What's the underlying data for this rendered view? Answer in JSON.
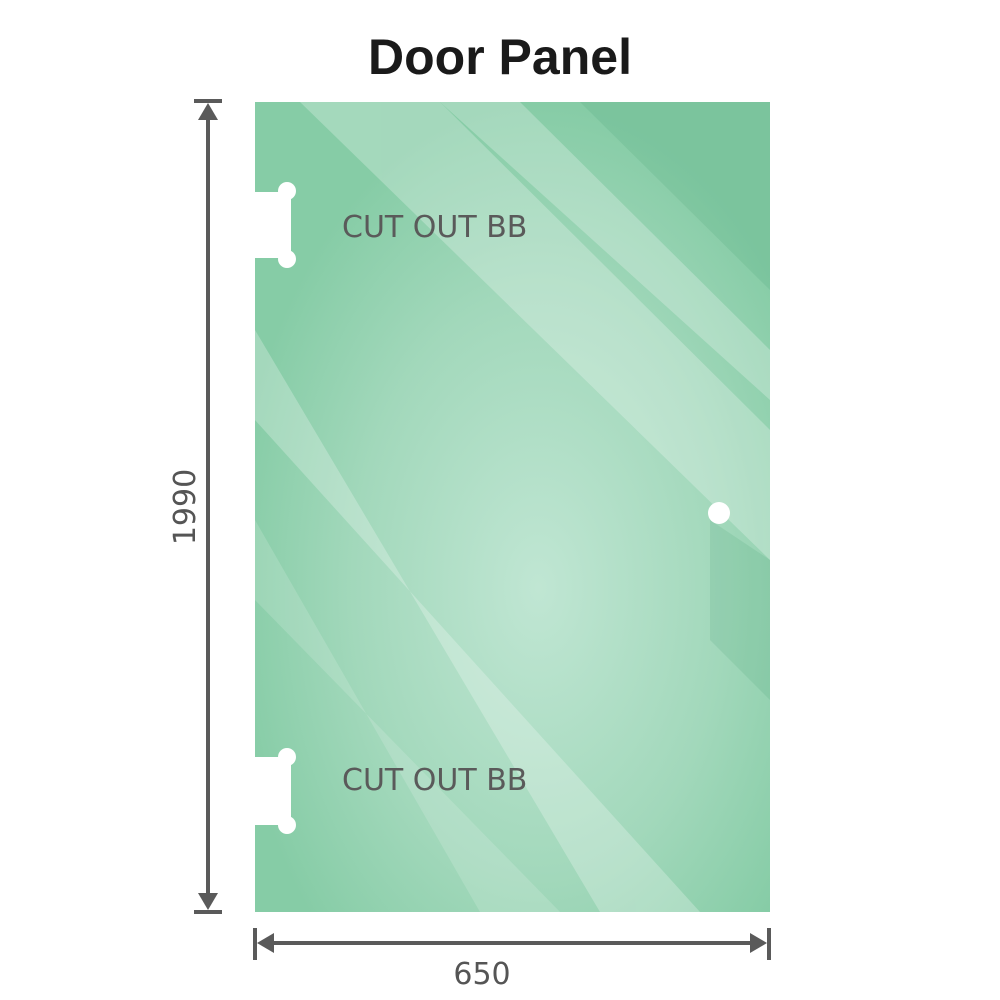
{
  "title": "Door Panel",
  "cutouts": [
    {
      "label": "CUT OUT BB"
    },
    {
      "label": "CUT OUT BB"
    }
  ],
  "dimensions": {
    "height": "1990",
    "width": "650"
  },
  "colors": {
    "glass": "#86cca6",
    "glass_highlight": "#bfe6d2",
    "dimension_line": "#5a5a5a"
  }
}
